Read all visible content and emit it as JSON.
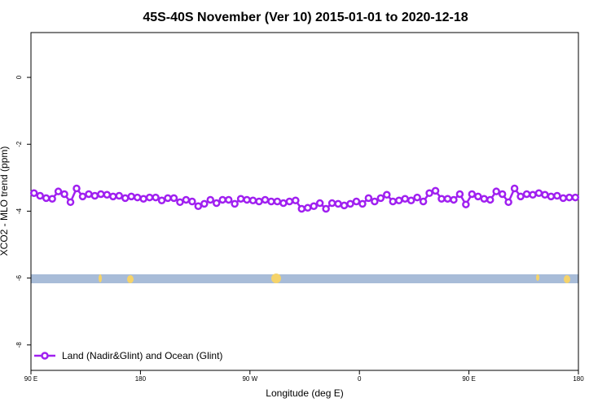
{
  "chart_data": {
    "type": "line",
    "title": "45S-40S November (Ver 10)   2015-01-01 to 2020-12-18",
    "x_label": "Longitude (deg E)",
    "y_label": "XCO2 - MLO trend (ppm)",
    "xlim": [
      90,
      540
    ],
    "xticks": [
      {
        "value": 90,
        "label": "90 E"
      },
      180,
      {
        "value": 270,
        "label": "90 W"
      },
      {
        "value": 360,
        "label": "0"
      },
      {
        "value": 450,
        "label": "90 E"
      },
      {
        "value": 540,
        "label": "180"
      }
    ],
    "ylim": [
      -8.76,
      1.34
    ],
    "yticks": [
      0,
      -2,
      -4,
      -6,
      -8
    ],
    "legend": "bottom-left",
    "x": [
      92.5,
      97.5,
      102.5,
      107.5,
      112.5,
      117.5,
      122.5,
      127.5,
      132.5,
      137.5,
      142.5,
      147.5,
      152.5,
      157.5,
      162.5,
      167.5,
      172.5,
      177.5,
      182.5,
      187.5,
      192.5,
      197.5,
      202.5,
      207.5,
      212.5,
      217.5,
      222.5,
      227.5,
      232.5,
      237.5,
      242.5,
      247.5,
      252.5,
      257.5,
      262.5,
      267.5,
      272.5,
      277.5,
      282.5,
      287.5,
      292.5,
      297.5,
      302.5,
      307.5,
      312.5,
      317.5,
      322.5,
      327.5,
      332.5,
      337.5,
      342.5,
      347.5,
      352.5,
      357.5,
      362.5,
      367.5,
      372.5,
      377.5,
      382.5,
      387.5,
      392.5,
      397.5,
      402.5,
      407.5,
      412.5,
      417.5,
      422.5,
      427.5,
      432.5,
      437.5,
      442.5,
      447.5,
      452.5,
      457.5,
      462.5,
      467.5,
      472.5,
      477.5,
      482.5,
      487.5,
      492.5,
      497.5,
      502.5,
      507.5,
      512.5,
      517.5,
      522.5,
      527.5,
      532.5,
      537.5
    ],
    "series": [
      {
        "name": "Land (Nadir&Glint) and Ocean (Glint)",
        "color": "#a020f0",
        "values": [
          -3.46,
          -3.54,
          -3.61,
          -3.63,
          -3.41,
          -3.49,
          -3.73,
          -3.32,
          -3.56,
          -3.49,
          -3.54,
          -3.49,
          -3.51,
          -3.56,
          -3.54,
          -3.61,
          -3.56,
          -3.59,
          -3.63,
          -3.59,
          -3.59,
          -3.68,
          -3.61,
          -3.61,
          -3.73,
          -3.66,
          -3.71,
          -3.85,
          -3.78,
          -3.66,
          -3.76,
          -3.66,
          -3.66,
          -3.78,
          -3.63,
          -3.66,
          -3.68,
          -3.71,
          -3.66,
          -3.71,
          -3.71,
          -3.76,
          -3.71,
          -3.68,
          -3.93,
          -3.9,
          -3.85,
          -3.76,
          -3.93,
          -3.76,
          -3.78,
          -3.83,
          -3.78,
          -3.71,
          -3.78,
          -3.61,
          -3.71,
          -3.61,
          -3.51,
          -3.71,
          -3.68,
          -3.63,
          -3.68,
          -3.59,
          -3.71,
          -3.46,
          -3.39,
          -3.63,
          -3.63,
          -3.66,
          -3.49,
          -3.8,
          -3.49,
          -3.56,
          -3.63,
          -3.66,
          -3.41,
          -3.49,
          -3.73,
          -3.32,
          -3.56,
          -3.49,
          -3.51,
          -3.46,
          -3.51,
          -3.56,
          -3.54,
          -3.61,
          -3.59,
          -3.59
        ]
      }
    ]
  }
}
